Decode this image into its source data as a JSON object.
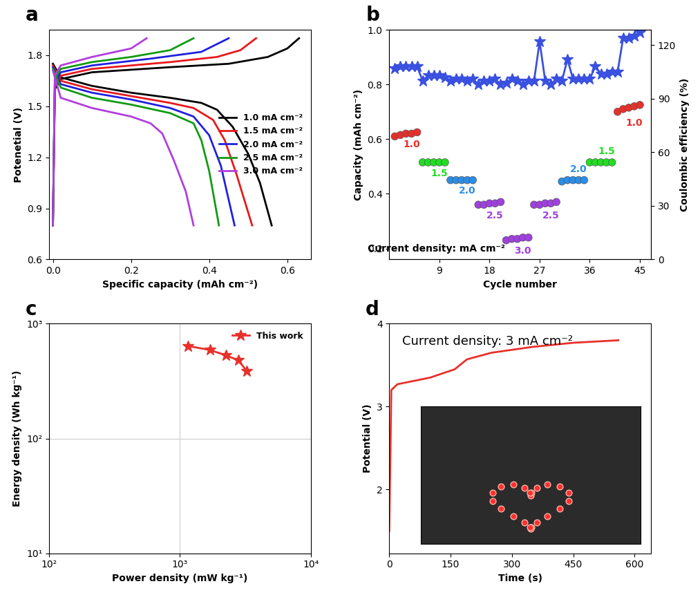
{
  "chart_data": [
    {
      "type": "line",
      "panel": "a",
      "x_label": "Specific capacity (mAh cm⁻²)",
      "y_label": "Potenetial (V)",
      "xlim": [
        -0.01,
        0.66
      ],
      "xticks": [
        {
          "value": 0.0,
          "label": "0.0"
        },
        0.2,
        0.4,
        0.6
      ],
      "ylim": [
        0.6,
        1.95
      ],
      "yticks": [
        0.6,
        0.9,
        1.2,
        1.5,
        1.8
      ],
      "legend": "right",
      "series": [
        {
          "name": "1.0 mA cm⁻²",
          "color": "#000000",
          "x": [
            0,
            0.005,
            0.02,
            0.1,
            0.3,
            0.45,
            0.55,
            0.6,
            0.63
          ],
          "values": [
            0.8,
            1.6,
            1.66,
            1.7,
            1.73,
            1.75,
            1.79,
            1.84,
            1.9
          ]
        },
        {
          "color": "#000000",
          "x": [
            0,
            0.02,
            0.1,
            0.2,
            0.3,
            0.38,
            0.42,
            0.46,
            0.5,
            0.53,
            0.56
          ],
          "values": [
            1.75,
            1.67,
            1.62,
            1.58,
            1.55,
            1.52,
            1.48,
            1.38,
            1.22,
            1.05,
            0.8
          ]
        },
        {
          "name": "1.5 mA cm⁻²",
          "color": "#e8181c",
          "x": [
            0,
            0.005,
            0.02,
            0.1,
            0.3,
            0.42,
            0.48,
            0.52
          ],
          "values": [
            0.8,
            1.62,
            1.68,
            1.72,
            1.76,
            1.79,
            1.83,
            1.9
          ]
        },
        {
          "color": "#e8181c",
          "x": [
            0,
            0.02,
            0.1,
            0.2,
            0.3,
            0.36,
            0.41,
            0.44,
            0.47,
            0.51
          ],
          "values": [
            1.74,
            1.65,
            1.6,
            1.56,
            1.52,
            1.49,
            1.42,
            1.3,
            1.1,
            0.8
          ]
        },
        {
          "name": "2.0 mA cm⁻²",
          "color": "#1f1fe0",
          "x": [
            0,
            0.005,
            0.02,
            0.1,
            0.25,
            0.38,
            0.45
          ],
          "values": [
            0.8,
            1.64,
            1.7,
            1.74,
            1.78,
            1.82,
            1.9
          ]
        },
        {
          "color": "#1f1fe0",
          "x": [
            0,
            0.02,
            0.1,
            0.2,
            0.3,
            0.36,
            0.4,
            0.43,
            0.465
          ],
          "values": [
            1.73,
            1.63,
            1.58,
            1.54,
            1.49,
            1.44,
            1.33,
            1.15,
            0.8
          ]
        },
        {
          "name": "2.5 mA cm⁻²",
          "color": "#119a11",
          "x": [
            0,
            0.005,
            0.02,
            0.1,
            0.2,
            0.3,
            0.36
          ],
          "values": [
            0.8,
            1.66,
            1.72,
            1.76,
            1.79,
            1.83,
            1.9
          ]
        },
        {
          "color": "#119a11",
          "x": [
            0,
            0.02,
            0.1,
            0.2,
            0.3,
            0.36,
            0.38,
            0.4,
            0.425
          ],
          "values": [
            1.72,
            1.61,
            1.55,
            1.51,
            1.46,
            1.4,
            1.3,
            1.12,
            0.8
          ]
        },
        {
          "name": "3.0 mA cm⁻²",
          "color": "#b23de0",
          "x": [
            0,
            0.005,
            0.02,
            0.1,
            0.2,
            0.24
          ],
          "values": [
            0.8,
            1.68,
            1.74,
            1.79,
            1.84,
            1.9
          ]
        },
        {
          "color": "#b23de0",
          "x": [
            0,
            0.02,
            0.1,
            0.2,
            0.25,
            0.28,
            0.31,
            0.34,
            0.36
          ],
          "values": [
            1.71,
            1.55,
            1.49,
            1.44,
            1.4,
            1.34,
            1.18,
            1.0,
            0.8
          ]
        }
      ]
    },
    {
      "type": "scatter",
      "panel": "b",
      "x_label": "Cycle number",
      "y_label": "Capacity (mAh cm⁻²)",
      "y2_label": "Coulombic efficiency (%)",
      "xlim": [
        0,
        47
      ],
      "xticks": [
        9,
        18,
        27,
        36,
        45
      ],
      "ylim": [
        0.16,
        1.0
      ],
      "yticks": [
        0.2,
        0.4,
        0.6,
        0.8,
        {
          "value": 1.0,
          "label": "1.0"
        }
      ],
      "y2lim": [
        0,
        128.6
      ],
      "y2ticks": [
        0,
        30,
        60,
        90,
        120
      ],
      "series": [
        {
          "marker": "o",
          "x": [
            1,
            2,
            3,
            4,
            5,
            6,
            7,
            8,
            9,
            10,
            11,
            12,
            13,
            14,
            15,
            16,
            17,
            18,
            19,
            20,
            21,
            22,
            23,
            24,
            25,
            26,
            27,
            28,
            29,
            30,
            31,
            32,
            33,
            34,
            35,
            36,
            37,
            38,
            39,
            40,
            41,
            42,
            43,
            44,
            45
          ],
          "values": [
            0.61,
            0.615,
            0.62,
            0.62,
            0.625,
            0.515,
            0.515,
            0.515,
            0.515,
            0.515,
            0.45,
            0.45,
            0.45,
            0.45,
            0.45,
            0.36,
            0.36,
            0.365,
            0.365,
            0.37,
            0.23,
            0.235,
            0.235,
            0.24,
            0.24,
            0.36,
            0.36,
            0.365,
            0.365,
            0.37,
            0.445,
            0.45,
            0.45,
            0.45,
            0.45,
            0.515,
            0.515,
            0.515,
            0.515,
            0.515,
            0.7,
            0.71,
            0.715,
            0.72,
            0.725
          ],
          "colors": [
            "#e8302a",
            "#e8302a",
            "#e8302a",
            "#e8302a",
            "#e8302a",
            "#22dd22",
            "#22dd22",
            "#22dd22",
            "#22dd22",
            "#22dd22",
            "#2a8ee8",
            "#2a8ee8",
            "#2a8ee8",
            "#2a8ee8",
            "#2a8ee8",
            "#a040e0",
            "#a040e0",
            "#a040e0",
            "#a040e0",
            "#a040e0",
            "#a040e0",
            "#a040e0",
            "#a040e0",
            "#a040e0",
            "#a040e0",
            "#a040e0",
            "#a040e0",
            "#a040e0",
            "#a040e0",
            "#a040e0",
            "#2a8ee8",
            "#2a8ee8",
            "#2a8ee8",
            "#2a8ee8",
            "#2a8ee8",
            "#22dd22",
            "#22dd22",
            "#22dd22",
            "#22dd22",
            "#22dd22",
            "#e8302a",
            "#e8302a",
            "#e8302a",
            "#e8302a",
            "#e8302a"
          ]
        },
        {
          "marker": "*",
          "axis": "y2",
          "color": "#3a50e0",
          "line_style": "solid",
          "x": [
            1,
            2,
            3,
            4,
            5,
            6,
            7,
            8,
            9,
            10,
            11,
            12,
            13,
            14,
            15,
            16,
            17,
            18,
            19,
            20,
            21,
            22,
            23,
            24,
            25,
            26,
            27,
            28,
            29,
            30,
            31,
            32,
            33,
            34,
            35,
            36,
            37,
            38,
            39,
            40,
            41,
            42,
            43,
            44,
            45
          ],
          "values": [
            107,
            108,
            108,
            108,
            108,
            100,
            103,
            103,
            103,
            102,
            100,
            101,
            101,
            100,
            101,
            98,
            100,
            100,
            101,
            98,
            99,
            101,
            100,
            98,
            100,
            100,
            122,
            100,
            98,
            101,
            100,
            112,
            101,
            101,
            101,
            101,
            108,
            104,
            104,
            105,
            105,
            124,
            124,
            125,
            127
          ]
        }
      ],
      "annotations": [
        {
          "text": "1.0",
          "x": 4,
          "y": 0.58,
          "color": "#e8302a"
        },
        {
          "text": "1.5",
          "x": 9,
          "y": 0.475,
          "color": "#22dd22"
        },
        {
          "text": "2.0",
          "x": 14,
          "y": 0.41,
          "color": "#2a8ee8"
        },
        {
          "text": "2.5",
          "x": 19,
          "y": 0.32,
          "color": "#a040e0"
        },
        {
          "text": "3.0",
          "x": 24,
          "y": 0.19,
          "color": "#a040e0"
        },
        {
          "text": "2.5",
          "x": 29,
          "y": 0.32,
          "color": "#a040e0"
        },
        {
          "text": "2.0",
          "x": 34,
          "y": 0.49,
          "color": "#2a8ee8"
        },
        {
          "text": "1.5",
          "x": 39,
          "y": 0.555,
          "color": "#22dd22"
        },
        {
          "text": "1.0",
          "x": 44,
          "y": 0.66,
          "color": "#e8302a"
        },
        {
          "text": "Current density: mA cm⁻²",
          "x": 8.5,
          "y": 0.2,
          "color": "#000000"
        }
      ]
    },
    {
      "type": "line",
      "panel": "c",
      "log": true,
      "grid": true,
      "legend": "upper right",
      "x_label": "Power density (mW kg⁻¹)",
      "y_label": "Energy density (Wh kg⁻¹)",
      "xlim": [
        100,
        10000
      ],
      "xticks": [
        {
          "value": 100,
          "label": "10²"
        },
        {
          "value": 1000,
          "label": "10³"
        },
        {
          "value": 10000,
          "label": "10⁴"
        }
      ],
      "ylim": [
        10,
        1000
      ],
      "yticks": [
        {
          "value": 10,
          "label": "10¹"
        },
        {
          "value": 100,
          "label": "10²"
        },
        {
          "value": 1000,
          "label": "10³"
        }
      ],
      "series": [
        {
          "name": "This work",
          "color": "#e8302a",
          "marker": "*",
          "line_style": "solid",
          "x": [
            1150,
            1700,
            2250,
            2800,
            3250
          ],
          "values": [
            640,
            590,
            530,
            480,
            385
          ]
        }
      ]
    },
    {
      "type": "line",
      "panel": "d",
      "x_label": "Time (s)",
      "y_label": "Potential (V)",
      "annotation": "Current density: 3 mA cm⁻²",
      "xlim": [
        0,
        640
      ],
      "xticks": [
        0,
        150,
        300,
        450,
        600
      ],
      "ylim": [
        1.23,
        4.0
      ],
      "yticks": [
        2,
        3,
        4
      ],
      "series": [
        {
          "color": "#e8302a",
          "line_style": "solid",
          "x": [
            0,
            5,
            20,
            100,
            160,
            190,
            250,
            350,
            450,
            560
          ],
          "values": [
            1.5,
            3.2,
            3.27,
            3.35,
            3.45,
            3.57,
            3.65,
            3.72,
            3.77,
            3.8
          ]
        }
      ]
    }
  ]
}
